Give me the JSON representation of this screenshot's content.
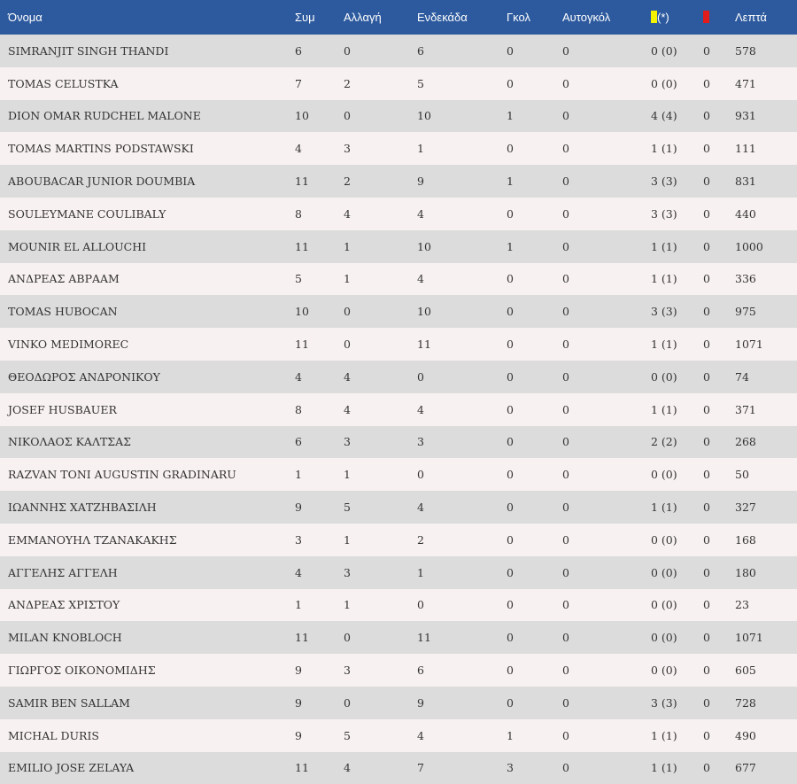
{
  "table": {
    "headers": {
      "name": "Όνομα",
      "apps": "Συμ",
      "subs": "Αλλαγή",
      "starts": "Ενδεκάδα",
      "goals": "Γκολ",
      "own_goals": "Αυτογκόλ",
      "yellow_suffix": "(*)",
      "minutes": "Λεπτά"
    },
    "card_colors": {
      "yellow": "#f3f300",
      "red": "#e21b1b"
    },
    "header_bg": "#2d5a9e",
    "rows": [
      {
        "name": "SIMRANJIT SINGH THANDI",
        "apps": "6",
        "subs": "0",
        "starts": "6",
        "goals": "0",
        "own_goals": "0",
        "yellow": "0 (0)",
        "red": "0",
        "minutes": "578"
      },
      {
        "name": "TOMAS CELUSTKA",
        "apps": "7",
        "subs": "2",
        "starts": "5",
        "goals": "0",
        "own_goals": "0",
        "yellow": "0 (0)",
        "red": "0",
        "minutes": "471"
      },
      {
        "name": "DION OMAR RUDCHEL MALONE",
        "apps": "10",
        "subs": "0",
        "starts": "10",
        "goals": "1",
        "own_goals": "0",
        "yellow": "4 (4)",
        "red": "0",
        "minutes": "931"
      },
      {
        "name": "TOMAS MARTINS PODSTAWSKI",
        "apps": "4",
        "subs": "3",
        "starts": "1",
        "goals": "0",
        "own_goals": "0",
        "yellow": "1 (1)",
        "red": "0",
        "minutes": "111"
      },
      {
        "name": "ABOUBACAR JUNIOR DOUMBIA",
        "apps": "11",
        "subs": "2",
        "starts": "9",
        "goals": "1",
        "own_goals": "0",
        "yellow": "3 (3)",
        "red": "0",
        "minutes": "831"
      },
      {
        "name": "SOULEYMANE COULIBALY",
        "apps": "8",
        "subs": "4",
        "starts": "4",
        "goals": "0",
        "own_goals": "0",
        "yellow": "3 (3)",
        "red": "0",
        "minutes": "440"
      },
      {
        "name": "MOUNIR EL ALLOUCHI",
        "apps": "11",
        "subs": "1",
        "starts": "10",
        "goals": "1",
        "own_goals": "0",
        "yellow": "1 (1)",
        "red": "0",
        "minutes": "1000"
      },
      {
        "name": "ΑΝΔΡΕΑΣ ΑΒΡΑΑΜ",
        "apps": "5",
        "subs": "1",
        "starts": "4",
        "goals": "0",
        "own_goals": "0",
        "yellow": "1 (1)",
        "red": "0",
        "minutes": "336"
      },
      {
        "name": "TOMAS HUBOCAN",
        "apps": "10",
        "subs": "0",
        "starts": "10",
        "goals": "0",
        "own_goals": "0",
        "yellow": "3 (3)",
        "red": "0",
        "minutes": "975"
      },
      {
        "name": "VINKO MEDIMOREC",
        "apps": "11",
        "subs": "0",
        "starts": "11",
        "goals": "0",
        "own_goals": "0",
        "yellow": "1 (1)",
        "red": "0",
        "minutes": "1071"
      },
      {
        "name": "ΘΕΟΔΩΡΟΣ ΑΝΔΡΟΝΙΚΟΥ",
        "apps": "4",
        "subs": "4",
        "starts": "0",
        "goals": "0",
        "own_goals": "0",
        "yellow": "0 (0)",
        "red": "0",
        "minutes": "74"
      },
      {
        "name": "JOSEF HUSBAUER",
        "apps": "8",
        "subs": "4",
        "starts": "4",
        "goals": "0",
        "own_goals": "0",
        "yellow": "1 (1)",
        "red": "0",
        "minutes": "371"
      },
      {
        "name": "ΝΙΚΟΛΑΟΣ ΚΑΛΤΣΑΣ",
        "apps": "6",
        "subs": "3",
        "starts": "3",
        "goals": "0",
        "own_goals": "0",
        "yellow": "2 (2)",
        "red": "0",
        "minutes": "268"
      },
      {
        "name": "RAZVAN TONI AUGUSTIN GRADINARU",
        "apps": "1",
        "subs": "1",
        "starts": "0",
        "goals": "0",
        "own_goals": "0",
        "yellow": "0 (0)",
        "red": "0",
        "minutes": "50"
      },
      {
        "name": "ΙΩΑΝΝΗΣ ΧΑΤΖΗΒΑΣΙΛΗ",
        "apps": "9",
        "subs": "5",
        "starts": "4",
        "goals": "0",
        "own_goals": "0",
        "yellow": "1 (1)",
        "red": "0",
        "minutes": "327"
      },
      {
        "name": "ΕΜΜΑΝΟΥΗΛ ΤΖΑΝΑΚΑΚΗΣ",
        "apps": "3",
        "subs": "1",
        "starts": "2",
        "goals": "0",
        "own_goals": "0",
        "yellow": "0 (0)",
        "red": "0",
        "minutes": "168"
      },
      {
        "name": "ΑΓΓΕΛΗΣ ΑΓΓΕΛΗ",
        "apps": "4",
        "subs": "3",
        "starts": "1",
        "goals": "0",
        "own_goals": "0",
        "yellow": "0 (0)",
        "red": "0",
        "minutes": "180"
      },
      {
        "name": "ΑΝΔΡΕΑΣ ΧΡΙΣΤΟΥ",
        "apps": "1",
        "subs": "1",
        "starts": "0",
        "goals": "0",
        "own_goals": "0",
        "yellow": "0 (0)",
        "red": "0",
        "minutes": "23"
      },
      {
        "name": "MILAN KNOBLOCH",
        "apps": "11",
        "subs": "0",
        "starts": "11",
        "goals": "0",
        "own_goals": "0",
        "yellow": "0 (0)",
        "red": "0",
        "minutes": "1071"
      },
      {
        "name": "ΓΙΩΡΓΟΣ ΟΙΚΟΝΟΜΙΔΗΣ",
        "apps": "9",
        "subs": "3",
        "starts": "6",
        "goals": "0",
        "own_goals": "0",
        "yellow": "0 (0)",
        "red": "0",
        "minutes": "605"
      },
      {
        "name": "SAMIR BEN SALLAM",
        "apps": "9",
        "subs": "0",
        "starts": "9",
        "goals": "0",
        "own_goals": "0",
        "yellow": "3 (3)",
        "red": "0",
        "minutes": "728"
      },
      {
        "name": "MICHAL DURIS",
        "apps": "9",
        "subs": "5",
        "starts": "4",
        "goals": "1",
        "own_goals": "0",
        "yellow": "1 (1)",
        "red": "0",
        "minutes": "490"
      },
      {
        "name": "EMILIO JOSE ZELAYA",
        "apps": "11",
        "subs": "4",
        "starts": "7",
        "goals": "3",
        "own_goals": "0",
        "yellow": "1 (1)",
        "red": "0",
        "minutes": "677"
      }
    ]
  }
}
